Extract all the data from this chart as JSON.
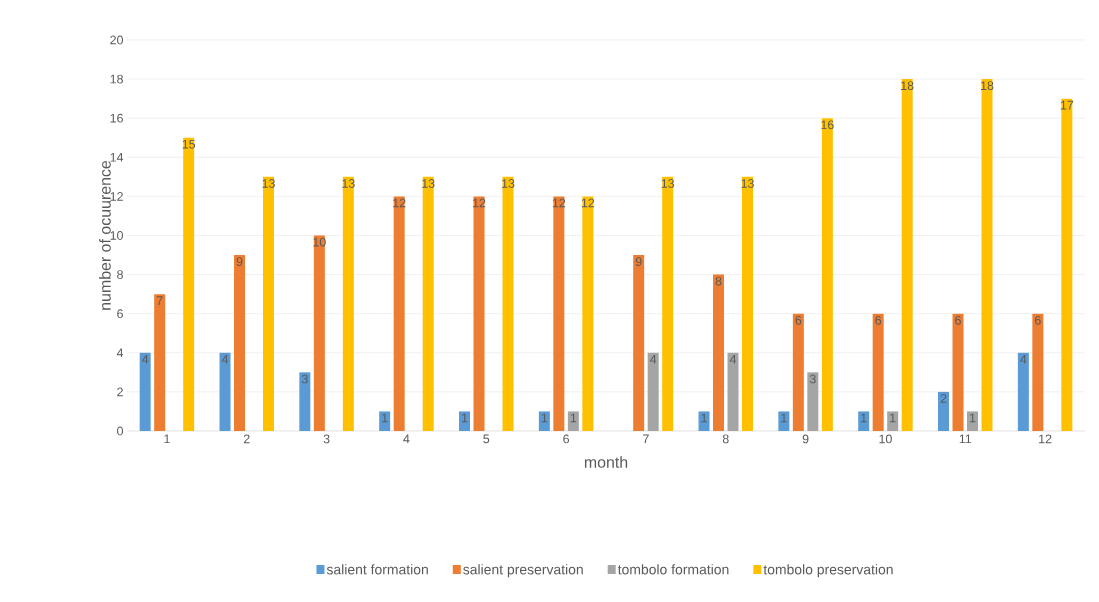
{
  "chart_data": {
    "type": "bar",
    "xlabel": "month",
    "ylabel": "number of ocuurence",
    "categories": [
      "1",
      "2",
      "3",
      "4",
      "5",
      "6",
      "7",
      "8",
      "9",
      "10",
      "11",
      "12"
    ],
    "series": [
      {
        "name": "salient formation",
        "color": "#5b9bd5",
        "values": [
          4,
          4,
          3,
          1,
          1,
          1,
          null,
          1,
          1,
          1,
          2,
          4
        ]
      },
      {
        "name": "salient preservation",
        "color": "#ed7d31",
        "values": [
          7,
          9,
          10,
          12,
          12,
          12,
          9,
          8,
          6,
          6,
          6,
          6
        ]
      },
      {
        "name": "tombolo formation",
        "color": "#a5a5a5",
        "values": [
          null,
          null,
          null,
          null,
          null,
          1,
          4,
          4,
          3,
          1,
          1,
          null
        ]
      },
      {
        "name": "tombolo preservation",
        "color": "#ffc000",
        "values": [
          15,
          13,
          13,
          13,
          13,
          12,
          13,
          13,
          16,
          18,
          18,
          17
        ]
      }
    ],
    "ylim": [
      0,
      20
    ],
    "yticks": [
      0,
      2,
      4,
      6,
      8,
      10,
      12,
      14,
      16,
      18,
      20
    ],
    "grid": "y",
    "legend": "bottom",
    "data_labels": true
  }
}
